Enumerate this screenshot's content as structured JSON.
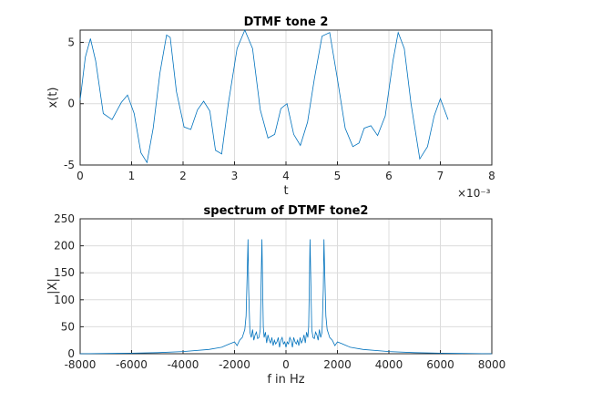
{
  "chart_data": [
    {
      "type": "line",
      "title": "DTMF tone 2",
      "xlabel": "t",
      "ylabel": "x(t)",
      "xlim": [
        0,
        8
      ],
      "ylim": [
        -5,
        6
      ],
      "x_exponent_label": "×10⁻³",
      "xticks": [
        "0",
        "1",
        "2",
        "3",
        "4",
        "5",
        "6",
        "7",
        "8"
      ],
      "yticks": [
        "-5",
        "0",
        "5"
      ],
      "grid": true,
      "series": [
        {
          "color": "#0072bd",
          "x": [
            0.0,
            0.1,
            0.2,
            0.3,
            0.45,
            0.62,
            0.8,
            0.92,
            1.05,
            1.18,
            1.3,
            1.42,
            1.55,
            1.68,
            1.75,
            1.87,
            2.02,
            2.15,
            2.28,
            2.4,
            2.52,
            2.63,
            2.75,
            2.88,
            3.05,
            3.2,
            3.35,
            3.5,
            3.65,
            3.78,
            3.9,
            4.02,
            4.15,
            4.28,
            4.42,
            4.55,
            4.7,
            4.85,
            5.0,
            5.15,
            5.3,
            5.42,
            5.52,
            5.65,
            5.78,
            5.93,
            6.08,
            6.18,
            6.3,
            6.43,
            6.6,
            6.75,
            6.88,
            7.0,
            7.15
          ],
          "values": [
            0.3,
            3.8,
            5.3,
            3.5,
            -0.8,
            -1.3,
            0.1,
            0.7,
            -0.8,
            -4.0,
            -4.8,
            -2.0,
            2.5,
            5.6,
            5.4,
            1.0,
            -1.9,
            -2.1,
            -0.5,
            0.2,
            -0.6,
            -3.8,
            -4.1,
            0.0,
            4.5,
            6.0,
            4.5,
            -0.5,
            -2.8,
            -2.5,
            -0.4,
            0.0,
            -2.5,
            -3.4,
            -1.5,
            2.0,
            5.5,
            5.8,
            2.0,
            -2.0,
            -3.5,
            -3.2,
            -2.0,
            -1.8,
            -2.6,
            -1.0,
            3.5,
            5.8,
            4.5,
            0.0,
            -4.5,
            -3.5,
            -1.0,
            0.4,
            -1.3
          ]
        }
      ]
    },
    {
      "type": "line",
      "title": "spectrum of DTMF tone2",
      "xlabel": "f in Hz",
      "ylabel": "|X|",
      "xlim": [
        -8000,
        8000
      ],
      "ylim": [
        0,
        250
      ],
      "xticks": [
        "-8000",
        "-6000",
        "-4000",
        "-2000",
        "0",
        "2000",
        "4000",
        "6000",
        "8000"
      ],
      "yticks": [
        "0",
        "50",
        "100",
        "150",
        "200",
        "250"
      ],
      "grid": true,
      "series": [
        {
          "color": "#0072bd",
          "x": [
            -8000,
            -6000,
            -5000,
            -4000,
            -3000,
            -2500,
            -2200,
            -2000,
            -1900,
            -1800,
            -1700,
            -1600,
            -1550,
            -1500,
            -1477,
            -1450,
            -1400,
            -1350,
            -1300,
            -1250,
            -1200,
            -1150,
            -1100,
            -1050,
            -1000,
            -960,
            -936,
            -910,
            -880,
            -850,
            -800,
            -750,
            -700,
            -650,
            -600,
            -550,
            -500,
            -450,
            -400,
            -350,
            -300,
            -250,
            -200,
            -150,
            -100,
            -50,
            0,
            50,
            100,
            150,
            200,
            250,
            300,
            350,
            400,
            450,
            500,
            550,
            600,
            650,
            700,
            750,
            800,
            850,
            880,
            910,
            936,
            960,
            1000,
            1050,
            1100,
            1150,
            1200,
            1250,
            1300,
            1350,
            1400,
            1450,
            1477,
            1500,
            1550,
            1600,
            1700,
            1800,
            1900,
            2000,
            2200,
            2500,
            3000,
            4000,
            5000,
            6000,
            8000
          ],
          "values": [
            0,
            1,
            2,
            4,
            8,
            12,
            18,
            22,
            15,
            25,
            30,
            45,
            70,
            160,
            212,
            120,
            40,
            30,
            45,
            25,
            35,
            40,
            28,
            30,
            45,
            150,
            212,
            130,
            50,
            30,
            40,
            20,
            35,
            25,
            20,
            30,
            15,
            25,
            18,
            22,
            30,
            12,
            25,
            30,
            18,
            22,
            12,
            22,
            18,
            30,
            25,
            12,
            30,
            22,
            18,
            25,
            15,
            30,
            20,
            25,
            35,
            20,
            40,
            30,
            50,
            130,
            212,
            150,
            45,
            30,
            28,
            40,
            35,
            25,
            45,
            30,
            40,
            120,
            212,
            160,
            70,
            45,
            30,
            25,
            15,
            22,
            18,
            12,
            8,
            4,
            2,
            1,
            0
          ]
        }
      ]
    }
  ]
}
